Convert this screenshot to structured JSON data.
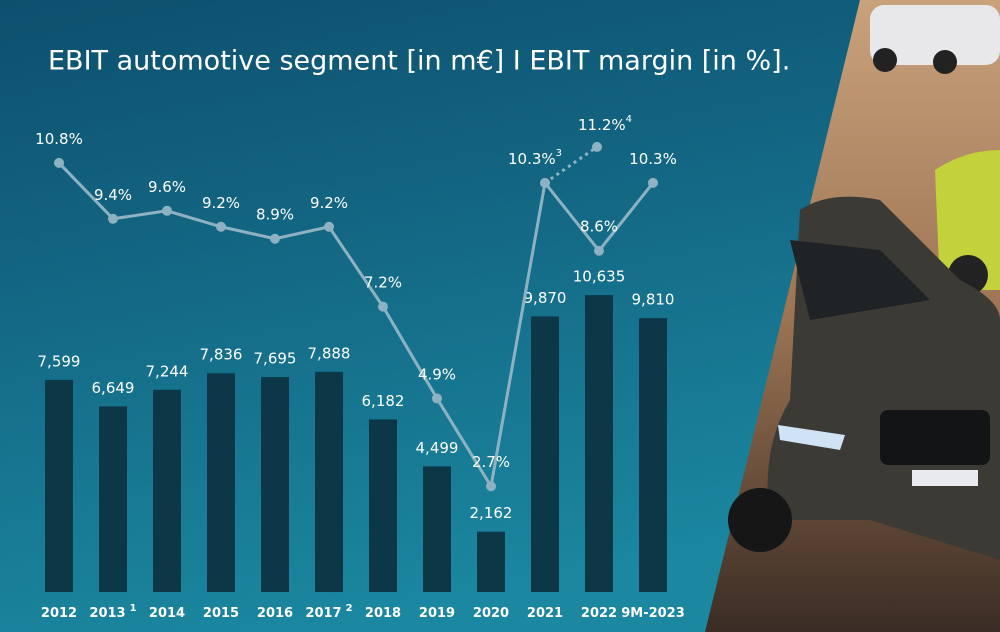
{
  "chart_data": {
    "type": "bar_line",
    "title": "EBIT automotive segment [in m€] I EBIT margin [in %].",
    "categories": [
      "2012",
      "2013",
      "2014",
      "2015",
      "2016",
      "2017",
      "2018",
      "2019",
      "2020",
      "2021",
      "2022",
      "9M-2023"
    ],
    "category_notes": [
      null,
      "1",
      null,
      null,
      null,
      "2",
      null,
      null,
      null,
      null,
      null,
      null
    ],
    "series": [
      {
        "name": "EBIT automotive segment",
        "type": "bar",
        "color": "#0c3747",
        "values": [
          7599,
          6649,
          7244,
          7836,
          7695,
          7888,
          6182,
          4499,
          2162,
          9870,
          10635,
          9810
        ],
        "value_labels": [
          "7,599",
          "6,649",
          "7,244",
          "7,836",
          "7,695",
          "7,888",
          "6,182",
          "4,499",
          "2,162",
          "9,870",
          "10,635",
          "9,810"
        ]
      },
      {
        "name": "EBIT margin",
        "type": "line",
        "axis": "y2",
        "color": "#8fb2c2",
        "values": [
          10.8,
          9.4,
          9.6,
          9.2,
          8.9,
          9.2,
          7.2,
          4.9,
          2.7,
          10.3,
          8.6,
          10.3
        ],
        "value_labels": [
          "10.8%",
          "9.4%",
          "9.6%",
          "9.2%",
          "8.9%",
          "9.2%",
          "7.2%",
          "4.9%",
          "2.7%",
          "10.3%",
          "8.6%",
          "10.3%"
        ],
        "value_notes": [
          null,
          null,
          null,
          null,
          null,
          null,
          null,
          null,
          null,
          "3",
          null,
          null
        ]
      }
    ],
    "extra_point": {
      "value": 11.2,
      "label": "11.2%",
      "note": "4"
    },
    "ylim": [
      0,
      12000
    ],
    "y2lim": [
      0,
      12
    ]
  }
}
